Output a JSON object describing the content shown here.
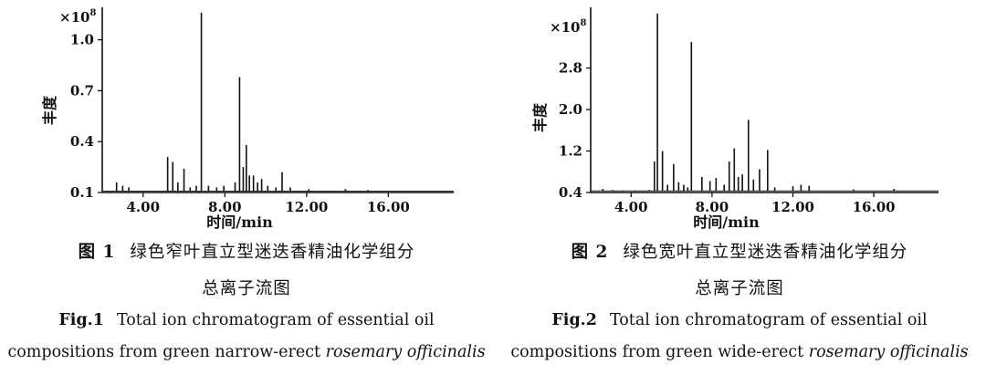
{
  "figures": [
    {
      "label_cn": "图 1",
      "title_cn_line1": "绿色窄叶直立型迷迭香精油化学组分",
      "title_cn_line2": "总离子流图",
      "label_en": "Fig.1",
      "title_en_line1": "Total ion chromatogram of essential oil",
      "title_en_line2_prefix": "compositions from green narrow-erect",
      "title_en_line2_species": "rosemary officinalis",
      "chart_data": {
        "type": "line",
        "y_multiplier_label": "×10",
        "y_multiplier_exp": "8",
        "ylabel": "丰度",
        "xlabel": "时间/min",
        "yticks": [
          "0.1",
          "0.4",
          "0.7",
          "1.0"
        ],
        "ytick_values": [
          0.1,
          0.4,
          0.7,
          1.0
        ],
        "xticks": [
          "4.00",
          "8.00",
          "12.00",
          "16.00"
        ],
        "xtick_values": [
          4,
          8,
          12,
          16
        ],
        "xlim": [
          2.0,
          19.2
        ],
        "ylim": [
          0.1,
          1.17
        ],
        "baseline": 0.108,
        "peaks": [
          {
            "x": 2.7,
            "y": 0.16
          },
          {
            "x": 3.0,
            "y": 0.14
          },
          {
            "x": 3.3,
            "y": 0.13
          },
          {
            "x": 5.2,
            "y": 0.31
          },
          {
            "x": 5.45,
            "y": 0.28
          },
          {
            "x": 5.7,
            "y": 0.16
          },
          {
            "x": 6.0,
            "y": 0.24
          },
          {
            "x": 6.3,
            "y": 0.13
          },
          {
            "x": 6.6,
            "y": 0.14
          },
          {
            "x": 6.85,
            "y": 1.16
          },
          {
            "x": 7.2,
            "y": 0.14
          },
          {
            "x": 7.6,
            "y": 0.13
          },
          {
            "x": 7.95,
            "y": 0.14
          },
          {
            "x": 8.5,
            "y": 0.16
          },
          {
            "x": 8.72,
            "y": 0.78
          },
          {
            "x": 8.9,
            "y": 0.25
          },
          {
            "x": 9.05,
            "y": 0.38
          },
          {
            "x": 9.2,
            "y": 0.2
          },
          {
            "x": 9.4,
            "y": 0.2
          },
          {
            "x": 9.6,
            "y": 0.16
          },
          {
            "x": 9.8,
            "y": 0.18
          },
          {
            "x": 10.1,
            "y": 0.14
          },
          {
            "x": 10.5,
            "y": 0.13
          },
          {
            "x": 10.8,
            "y": 0.22
          },
          {
            "x": 11.2,
            "y": 0.13
          },
          {
            "x": 12.1,
            "y": 0.12
          },
          {
            "x": 13.9,
            "y": 0.12
          },
          {
            "x": 15.0,
            "y": 0.115
          }
        ]
      }
    },
    {
      "label_cn": "图 2",
      "title_cn_line1": "绿色宽叶直立型迷迭香精油化学组分",
      "title_cn_line2": "总离子流图",
      "label_en": "Fig.2",
      "title_en_line1": "Total ion chromatogram of essential oil",
      "title_en_line2_prefix": "compositions from green wide-erect",
      "title_en_line2_species": "rosemary officinalis",
      "chart_data": {
        "type": "line",
        "y_multiplier_label": "×10",
        "y_multiplier_exp": "8",
        "ylabel": "丰度",
        "xlabel": "时间/min",
        "yticks": [
          "0.4",
          "1.2",
          "2.0",
          "2.8"
        ],
        "ytick_values": [
          0.4,
          1.2,
          2.0,
          2.8
        ],
        "xticks": [
          "4.00",
          "8.00",
          "12.00",
          "16.00"
        ],
        "xtick_values": [
          4,
          8,
          12,
          16
        ],
        "xlim": [
          2.0,
          19.2
        ],
        "ylim": [
          0.4,
          3.9
        ],
        "baseline": 0.43,
        "peaks": [
          {
            "x": 2.6,
            "y": 0.47
          },
          {
            "x": 3.1,
            "y": 0.45
          },
          {
            "x": 3.6,
            "y": 0.44
          },
          {
            "x": 4.2,
            "y": 0.44
          },
          {
            "x": 4.9,
            "y": 0.45
          },
          {
            "x": 5.15,
            "y": 1.0
          },
          {
            "x": 5.3,
            "y": 3.85
          },
          {
            "x": 5.55,
            "y": 1.2
          },
          {
            "x": 5.8,
            "y": 0.55
          },
          {
            "x": 6.1,
            "y": 0.95
          },
          {
            "x": 6.35,
            "y": 0.6
          },
          {
            "x": 6.6,
            "y": 0.55
          },
          {
            "x": 6.8,
            "y": 0.5
          },
          {
            "x": 6.98,
            "y": 3.3
          },
          {
            "x": 7.5,
            "y": 0.7
          },
          {
            "x": 7.9,
            "y": 0.62
          },
          {
            "x": 8.2,
            "y": 0.68
          },
          {
            "x": 8.6,
            "y": 0.55
          },
          {
            "x": 8.85,
            "y": 1.0
          },
          {
            "x": 9.1,
            "y": 1.25
          },
          {
            "x": 9.3,
            "y": 0.7
          },
          {
            "x": 9.5,
            "y": 0.75
          },
          {
            "x": 9.8,
            "y": 1.8
          },
          {
            "x": 10.05,
            "y": 0.65
          },
          {
            "x": 10.35,
            "y": 0.85
          },
          {
            "x": 10.75,
            "y": 1.22
          },
          {
            "x": 11.1,
            "y": 0.5
          },
          {
            "x": 12.0,
            "y": 0.52
          },
          {
            "x": 12.4,
            "y": 0.55
          },
          {
            "x": 12.8,
            "y": 0.53
          },
          {
            "x": 15.0,
            "y": 0.46
          },
          {
            "x": 17.0,
            "y": 0.47
          }
        ]
      }
    }
  ]
}
